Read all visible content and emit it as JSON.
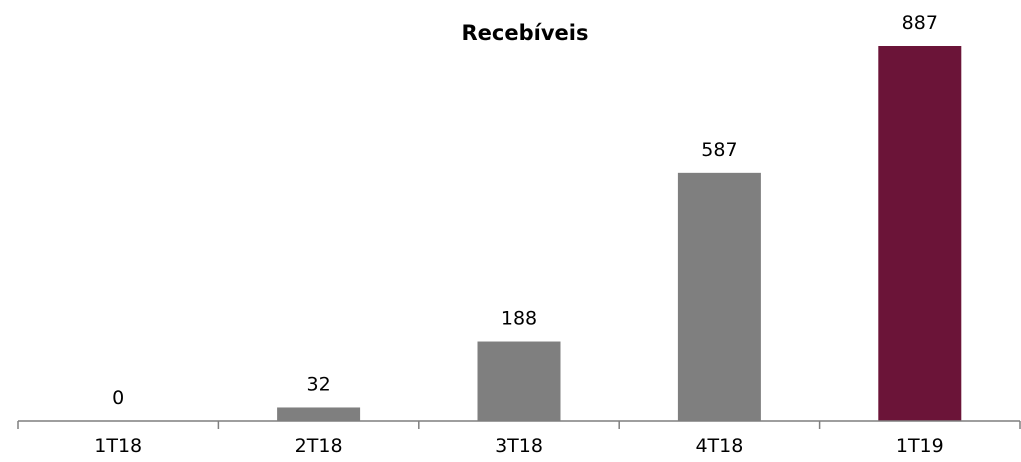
{
  "chart_data": {
    "type": "bar",
    "title": "Recebíveis",
    "categories": [
      "1T18",
      "2T18",
      "3T18",
      "4T18",
      "1T19"
    ],
    "values": [
      0,
      32,
      188,
      587,
      887
    ],
    "value_labels": [
      "0",
      "32",
      "188",
      "587",
      "887"
    ],
    "bar_colors": [
      "#7f7f7f",
      "#7f7f7f",
      "#7f7f7f",
      "#7f7f7f",
      "#6b1438"
    ],
    "xlabel": "",
    "ylabel": "",
    "ylim": [
      0,
      887
    ],
    "grid": false,
    "legend": "none"
  }
}
